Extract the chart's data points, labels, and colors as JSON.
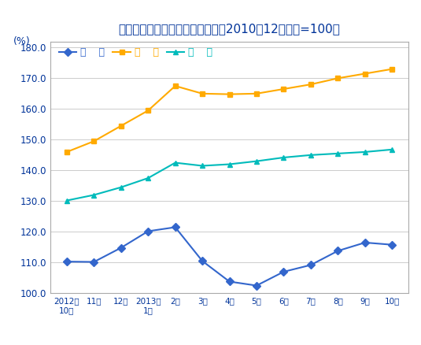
{
  "title": "猪肉、牛肉、羊肉价格变动情况（2010年12月价格=100）",
  "ylabel": "(%)",
  "x_labels": [
    "2012年\n10月",
    "11月",
    "12月",
    "2013年\n1月",
    "2月",
    "3月",
    "4月",
    "5月",
    "6月",
    "7月",
    "8月",
    "9月",
    "10月"
  ],
  "series": [
    {
      "name": "猪    肉",
      "color": "#3366CC",
      "marker": "D",
      "marker_size": 5,
      "values": [
        110.3,
        110.2,
        114.8,
        120.2,
        121.5,
        110.5,
        103.8,
        102.5,
        107.0,
        109.2,
        113.8,
        116.5,
        115.8
      ]
    },
    {
      "name": "牛    肉",
      "color": "#FFAA00",
      "marker": "s",
      "marker_size": 5,
      "values": [
        146.0,
        149.5,
        154.5,
        159.5,
        167.5,
        165.0,
        164.8,
        165.0,
        166.5,
        168.0,
        170.0,
        171.5,
        173.0
      ]
    },
    {
      "name": "羊    肉",
      "color": "#00BBBB",
      "marker": "^",
      "marker_size": 5,
      "values": [
        130.2,
        132.0,
        134.5,
        137.5,
        142.5,
        141.5,
        142.0,
        143.0,
        144.2,
        145.0,
        145.5,
        146.0,
        146.8
      ]
    }
  ],
  "ylim": [
    100.0,
    182.0
  ],
  "yticks": [
    100.0,
    110.0,
    120.0,
    130.0,
    140.0,
    150.0,
    160.0,
    170.0,
    180.0
  ],
  "background_color": "#FFFFFF",
  "plot_bg_color": "#FFFFFF",
  "grid_color": "#CCCCCC",
  "title_color": "#003399",
  "axis_color": "#003399",
  "tick_color": "#003399",
  "border_color": "#AAAAAA"
}
